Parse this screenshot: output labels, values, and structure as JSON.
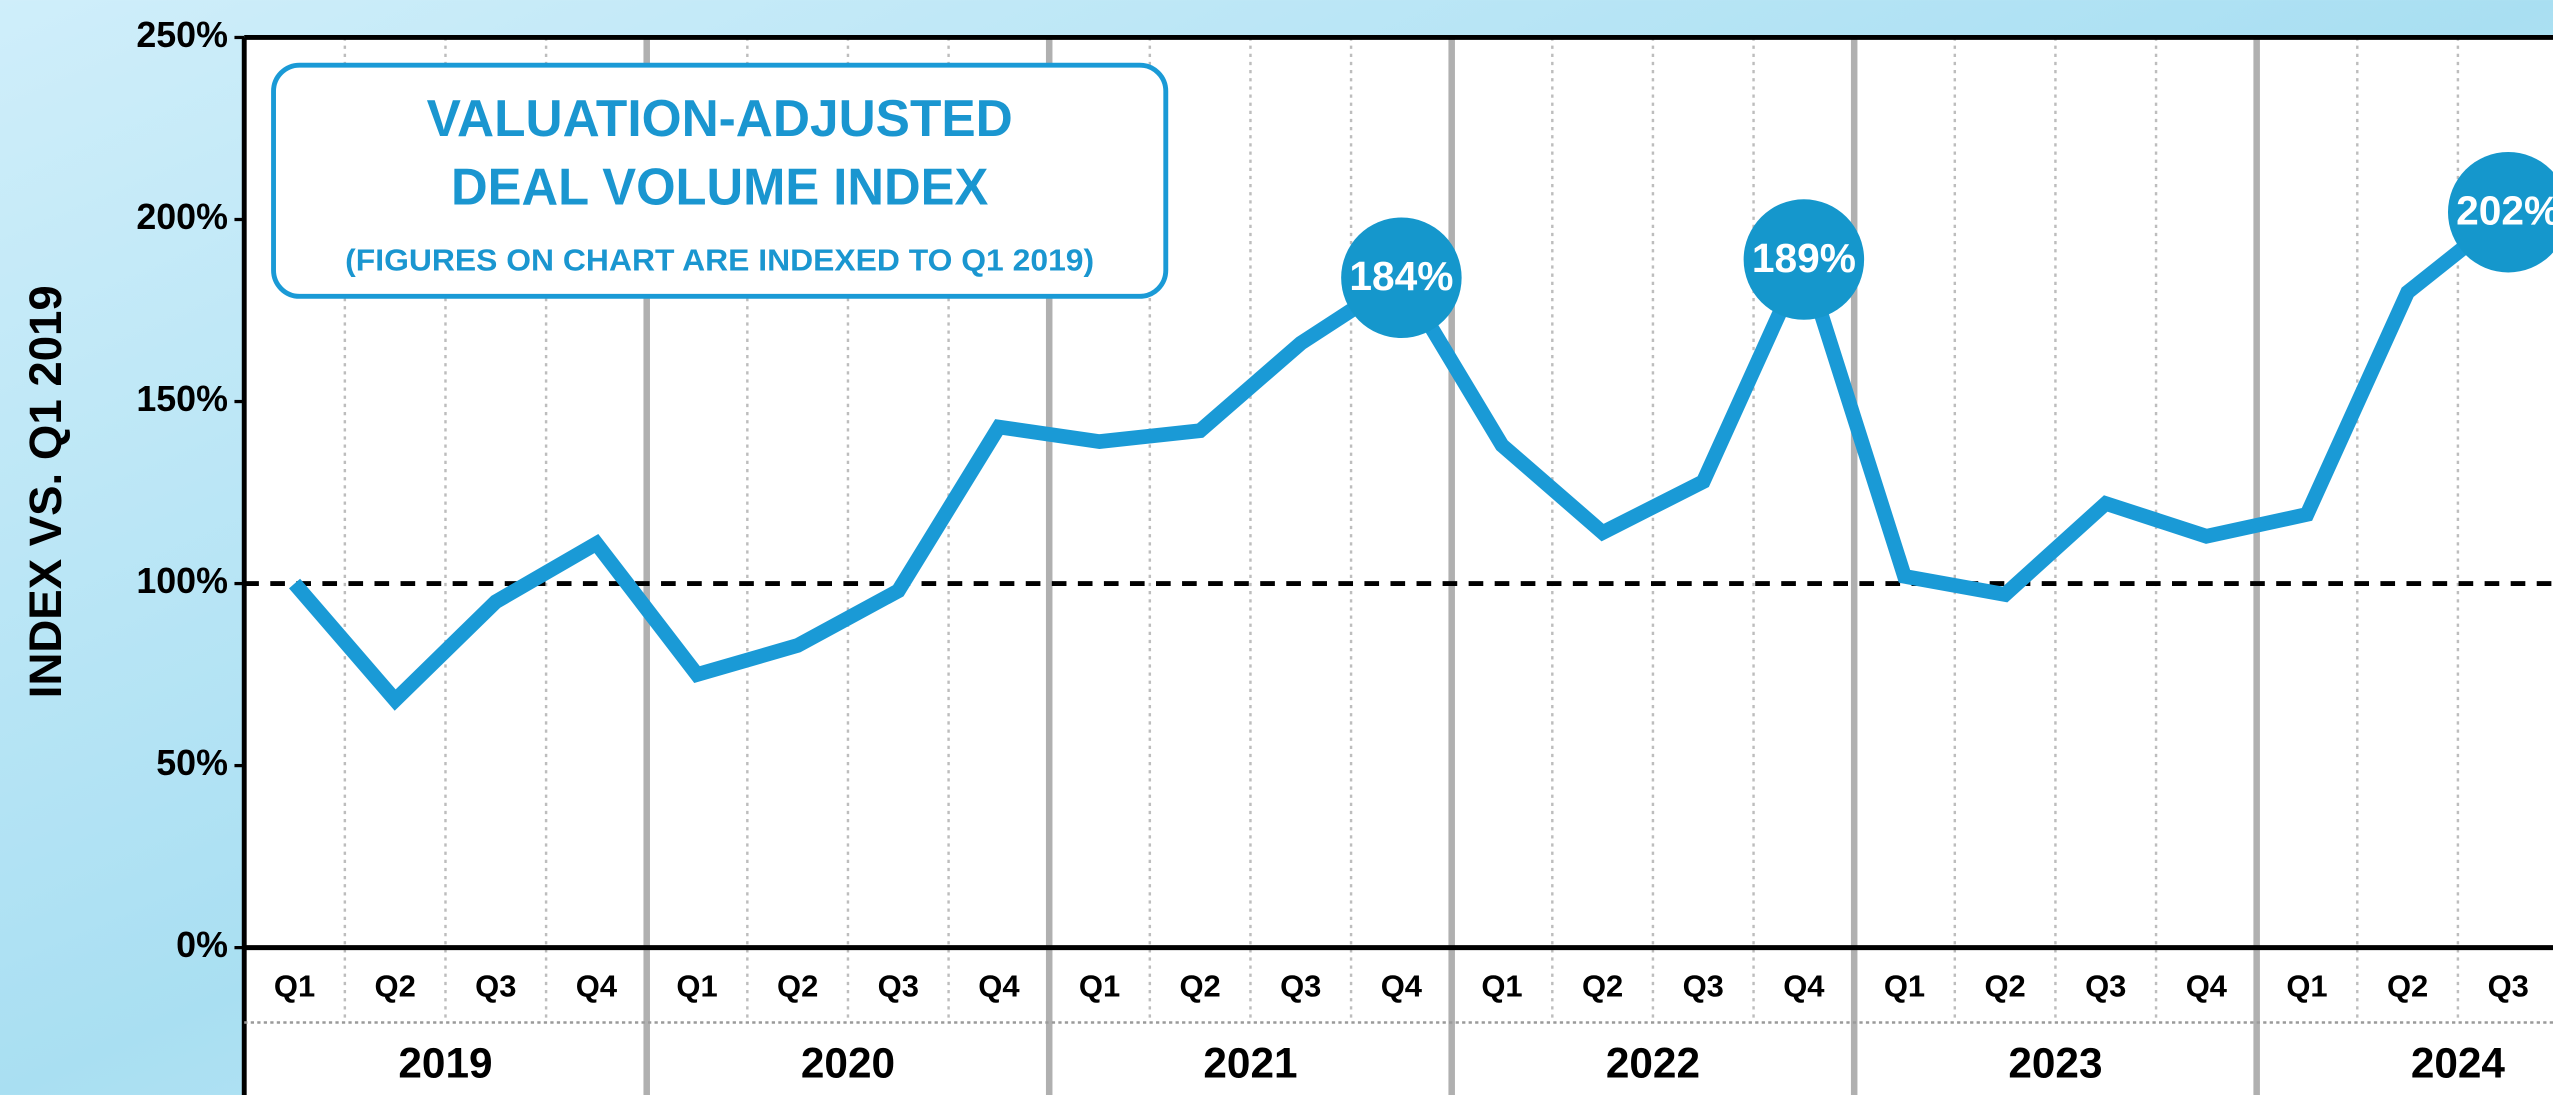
{
  "chart_data": {
    "type": "line",
    "title": [
      "VALUATION-ADJUSTED",
      "DEAL VOLUME INDEX"
    ],
    "subtitle": "(FIGURES ON CHART ARE INDEXED TO Q1 2019)",
    "y_label": "INDEX VS. Q1 2019",
    "categories": [
      "Q1",
      "Q2",
      "Q3",
      "Q4",
      "Q1",
      "Q2",
      "Q3",
      "Q4",
      "Q1",
      "Q2",
      "Q3",
      "Q4",
      "Q1",
      "Q2",
      "Q3",
      "Q4",
      "Q1",
      "Q2",
      "Q3",
      "Q4",
      "Q1",
      "Q2",
      "Q3"
    ],
    "years": [
      "2019",
      "2020",
      "2021",
      "2022",
      "2023",
      "2024"
    ],
    "series": [
      {
        "name": "Valuation-Adjusted Deal Volume Index",
        "color": "#1a9ad6",
        "values": [
          100,
          68,
          95,
          111,
          75,
          83,
          98,
          143,
          139,
          142,
          166,
          184,
          138,
          114,
          128,
          189,
          102,
          97,
          122,
          113,
          119,
          180,
          202
        ],
        "value_labels": [
          null,
          null,
          null,
          null,
          null,
          null,
          null,
          null,
          null,
          null,
          null,
          "184%",
          null,
          null,
          null,
          "189%",
          null,
          null,
          null,
          null,
          null,
          null,
          "202%"
        ]
      }
    ],
    "ylim": [
      0,
      250
    ],
    "yticks": [
      {
        "value": 0,
        "label": "0%"
      },
      {
        "value": 50,
        "label": "50%"
      },
      {
        "value": 100,
        "label": "100%"
      },
      {
        "value": 150,
        "label": "150%"
      },
      {
        "value": 200,
        "label": "200%"
      },
      {
        "value": 250,
        "label": "250%"
      }
    ],
    "reference_line": 100
  }
}
